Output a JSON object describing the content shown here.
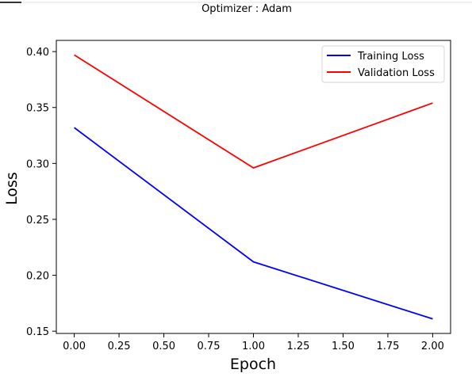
{
  "chart_data": {
    "type": "line",
    "title": "Optimizer : Adam",
    "xlabel": "Epoch",
    "ylabel": "Loss",
    "x": [
      0,
      1,
      2
    ],
    "xlim": [
      -0.1,
      2.1
    ],
    "ylim": [
      0.148,
      0.41
    ],
    "xticks": [
      "0.00",
      "0.25",
      "0.50",
      "0.75",
      "1.00",
      "1.25",
      "1.50",
      "1.75",
      "2.00"
    ],
    "yticks": [
      "0.15",
      "0.20",
      "0.25",
      "0.30",
      "0.35",
      "0.40"
    ],
    "grid": false,
    "legend_position": "upper right",
    "series": [
      {
        "name": "Training Loss",
        "values": [
          0.332,
          0.212,
          0.161
        ],
        "color": "#0000ff"
      },
      {
        "name": "Validation Loss",
        "values": [
          0.397,
          0.296,
          0.354
        ],
        "color": "#ff0000"
      }
    ]
  }
}
